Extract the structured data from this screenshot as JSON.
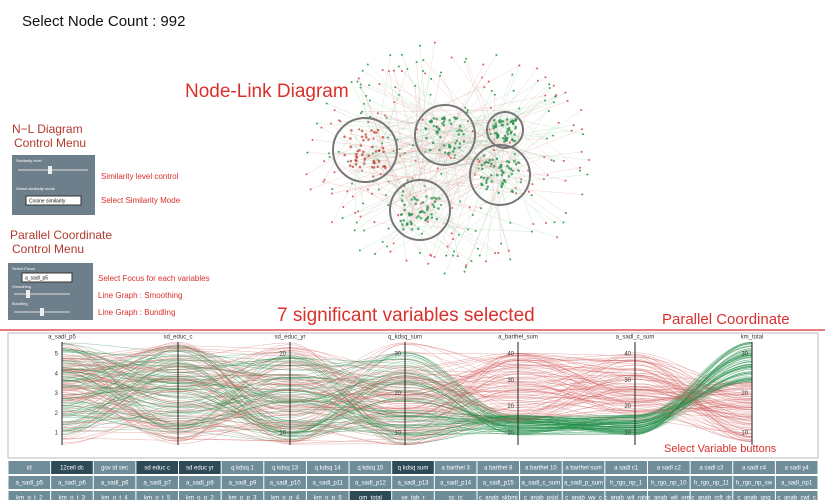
{
  "header": {
    "node_count": "Select Node Count : 992"
  },
  "node_link": {
    "title": "Node-Link Diagram"
  },
  "nl_menu": {
    "title_1": "N−L Diagram",
    "title_2": "Control Menu",
    "slider_label": "Similarity level",
    "select_label": "Select similarity mode",
    "select_value": "Cosine similarity",
    "note_1": "Similarity level control",
    "note_2": "Select Similarity Mode"
  },
  "pc_menu": {
    "title_1": "Parallel Coordinate",
    "title_2": "Control Menu",
    "focus_label": "Select Focus",
    "focus_value": "a_sadl_p5",
    "smooth_label": "Smoothing",
    "bundle_label": "Bundling",
    "note_1": "Select Focus for each variables",
    "note_2": "Line Graph : Smoothing",
    "note_3": "Line Graph : Bundling"
  },
  "banner": {
    "selected": "7 significant variables selected",
    "section": "Parallel Coordinate",
    "buttons_note": "Select Variable buttons"
  },
  "parallel": {
    "axes": [
      {
        "name": "a_sadl_p5",
        "ticks": [
          "5",
          "4",
          "3",
          "2",
          "1"
        ]
      },
      {
        "name": "sd_educ_c",
        "ticks": []
      },
      {
        "name": "sd_educ_yr",
        "ticks": [
          "20",
          "10"
        ]
      },
      {
        "name": "q_kdsq_sum",
        "ticks": [
          "30",
          "20",
          "10"
        ]
      },
      {
        "name": "a_barthel_sum",
        "ticks": [
          "40",
          "30",
          "20",
          "10"
        ]
      },
      {
        "name": "a_sadl_c_sum",
        "ticks": [
          "40",
          "30",
          "20",
          "10"
        ]
      },
      {
        "name": "km_total",
        "ticks": [
          "30",
          "20",
          "10"
        ]
      }
    ]
  },
  "buttons": {
    "rows": [
      [
        {
          "label": "id",
          "selected": false
        },
        {
          "label": "12cell dc",
          "selected": true
        },
        {
          "label": "gov id sec",
          "selected": false
        },
        {
          "label": "sd educ c",
          "selected": true
        },
        {
          "label": "sd educ yr",
          "selected": true
        },
        {
          "label": "q kdsq 1",
          "selected": false
        },
        {
          "label": "q kdsq 13",
          "selected": false
        },
        {
          "label": "q kdsq 14",
          "selected": false
        },
        {
          "label": "q kdsq 15",
          "selected": false
        },
        {
          "label": "q kdsq sum",
          "selected": true
        },
        {
          "label": "a barthel 3",
          "selected": false
        },
        {
          "label": "a barthel 8",
          "selected": false
        },
        {
          "label": "a barthel 10",
          "selected": false
        },
        {
          "label": "a barthel sum",
          "selected": false
        },
        {
          "label": "a sadl c1",
          "selected": false
        },
        {
          "label": "a sadl c2",
          "selected": false
        },
        {
          "label": "a sadl c3",
          "selected": false
        },
        {
          "label": "a sadl c4",
          "selected": false
        },
        {
          "label": "a sadl y4",
          "selected": false
        }
      ],
      [
        {
          "label": "a_sadl_p5",
          "selected": false
        },
        {
          "label": "a_sadl_p6",
          "selected": false
        },
        {
          "label": "a_sadl_p6",
          "selected": false
        },
        {
          "label": "a_sadl_p7",
          "selected": false
        },
        {
          "label": "a_sadl_p8",
          "selected": false
        },
        {
          "label": "a_sadl_p9",
          "selected": false
        },
        {
          "label": "a_sadl_p10",
          "selected": false
        },
        {
          "label": "a_sadl_p11",
          "selected": false
        },
        {
          "label": "a_sadl_p12",
          "selected": false
        },
        {
          "label": "a_sadl_p13",
          "selected": false
        },
        {
          "label": "a_sadl_p14",
          "selected": false
        },
        {
          "label": "a_sadl_p15",
          "selected": false
        },
        {
          "label": "a_sadl_c_sum",
          "selected": false
        },
        {
          "label": "a_sadl_p_sum",
          "selected": false
        },
        {
          "label": "h_rgo_np_1",
          "selected": false
        },
        {
          "label": "h_rgo_np_10",
          "selected": false
        },
        {
          "label": "h_rgo_np_11",
          "selected": false
        },
        {
          "label": "h_rgo_np_sw",
          "selected": false
        },
        {
          "label": "a_sadl_np1",
          "selected": false
        }
      ],
      [
        {
          "label": "km_o_t_2",
          "selected": false
        },
        {
          "label": "km_o_t_3",
          "selected": false
        },
        {
          "label": "km_o_t_4",
          "selected": false
        },
        {
          "label": "km_o_t_5",
          "selected": false
        },
        {
          "label": "km_o_p_2",
          "selected": false
        },
        {
          "label": "km_o_p_3",
          "selected": false
        },
        {
          "label": "km_o_p_4",
          "selected": false
        },
        {
          "label": "km_o_p_5",
          "selected": false
        },
        {
          "label": "om_total",
          "selected": true
        },
        {
          "label": "se_tab_r",
          "selected": false
        },
        {
          "label": "sc_tc",
          "selected": false
        },
        {
          "label": "c_anab_skbmi",
          "selected": false
        },
        {
          "label": "c_anab_psid",
          "selected": false
        },
        {
          "label": "c_anab_wy_c",
          "selected": false
        },
        {
          "label": "c_anab_wlt_rate",
          "selected": false
        },
        {
          "label": "c_anab_wlt_ore",
          "selected": false
        },
        {
          "label": "c_anab_rcft_dr",
          "selected": false
        },
        {
          "label": "c_anab_gng",
          "selected": false
        },
        {
          "label": "c_anab_cwt_c",
          "selected": false
        }
      ]
    ]
  }
}
